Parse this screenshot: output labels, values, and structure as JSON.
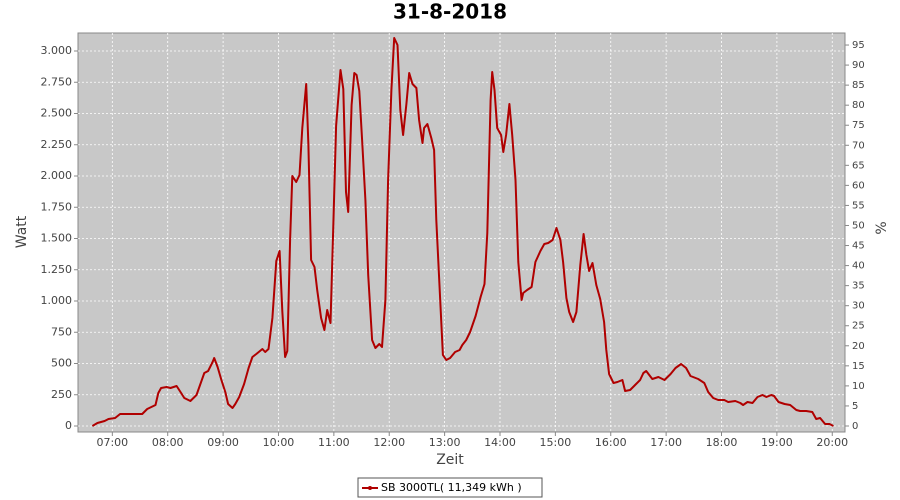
{
  "chart_data": {
    "type": "line",
    "title": "31-8-2018",
    "x_label": "Zeit",
    "y_label": "Watt",
    "y2_label": "%",
    "xlim": [
      6.38,
      20.23
    ],
    "xticks": [
      {
        "value": 7,
        "label": "07:00"
      },
      {
        "value": 8,
        "label": "08:00"
      },
      {
        "value": 9,
        "label": "09:00"
      },
      {
        "value": 10,
        "label": "10:00"
      },
      {
        "value": 11,
        "label": "11:00"
      },
      {
        "value": 12,
        "label": "12:00"
      },
      {
        "value": 13,
        "label": "13:00"
      },
      {
        "value": 14,
        "label": "14:00"
      },
      {
        "value": 15,
        "label": "15:00"
      },
      {
        "value": 16,
        "label": "16:00"
      },
      {
        "value": 17,
        "label": "17:00"
      },
      {
        "value": 18,
        "label": "18:00"
      },
      {
        "value": 19,
        "label": "19:00"
      },
      {
        "value": 20,
        "label": "20:00"
      }
    ],
    "ylim": [
      -48,
      3144
    ],
    "yticks": [
      0,
      250,
      500,
      750,
      {
        "value": 1000,
        "label": "1.000"
      },
      {
        "value": 1250,
        "label": "1.250"
      },
      {
        "value": 1500,
        "label": "1.500"
      },
      {
        "value": 1750,
        "label": "1.750"
      },
      {
        "value": 2000,
        "label": "2.000"
      },
      {
        "value": 2250,
        "label": "2.250"
      },
      {
        "value": 2500,
        "label": "2.500"
      },
      {
        "value": 2750,
        "label": "2.750"
      },
      {
        "value": 3000,
        "label": "3.000"
      }
    ],
    "y2lim": [
      -1.5,
      98
    ],
    "y2ticks": [
      0,
      5,
      10,
      15,
      20,
      25,
      30,
      35,
      40,
      45,
      50,
      55,
      60,
      65,
      70,
      75,
      80,
      85,
      90,
      95
    ],
    "grid": true,
    "legend": "bottom",
    "x": [
      6.64,
      6.73,
      6.86,
      6.93,
      7.05,
      7.14,
      7.54,
      7.63,
      7.78,
      7.83,
      7.88,
      7.98,
      8.05,
      8.16,
      8.23,
      8.3,
      8.41,
      8.52,
      8.59,
      8.66,
      8.73,
      8.81,
      8.84,
      8.9,
      8.97,
      9.04,
      9.09,
      9.17,
      9.22,
      9.29,
      9.38,
      9.46,
      9.53,
      9.6,
      9.71,
      9.76,
      9.82,
      9.89,
      9.96,
      10.02,
      10.07,
      10.12,
      10.16,
      10.21,
      10.25,
      10.32,
      10.38,
      10.43,
      10.5,
      10.54,
      10.59,
      10.65,
      10.7,
      10.77,
      10.83,
      10.88,
      10.94,
      10.99,
      11.04,
      11.12,
      11.17,
      11.22,
      11.26,
      11.32,
      11.37,
      11.41,
      11.46,
      11.51,
      11.57,
      11.62,
      11.69,
      11.75,
      11.82,
      11.87,
      11.93,
      11.98,
      12.04,
      12.09,
      12.15,
      12.2,
      12.25,
      12.31,
      12.36,
      12.42,
      12.49,
      12.54,
      12.6,
      12.63,
      12.69,
      12.76,
      12.81,
      12.85,
      12.92,
      12.97,
      13.03,
      13.1,
      13.19,
      13.27,
      13.32,
      13.39,
      13.46,
      13.56,
      13.65,
      13.72,
      13.77,
      13.83,
      13.86,
      13.9,
      13.95,
      14.02,
      14.06,
      14.11,
      14.17,
      14.22,
      14.28,
      14.33,
      14.39,
      14.42,
      14.49,
      14.57,
      14.64,
      14.73,
      14.8,
      14.87,
      14.95,
      15.02,
      15.09,
      15.14,
      15.2,
      15.25,
      15.32,
      15.38,
      15.45,
      15.51,
      15.56,
      15.61,
      15.67,
      15.74,
      15.81,
      15.88,
      15.92,
      15.97,
      16.05,
      16.12,
      16.21,
      16.26,
      16.35,
      16.44,
      16.53,
      16.59,
      16.64,
      16.75,
      16.86,
      16.97,
      17.08,
      17.17,
      17.27,
      17.36,
      17.44,
      17.58,
      17.69,
      17.76,
      17.85,
      17.94,
      18.05,
      18.12,
      18.25,
      18.34,
      18.39,
      18.47,
      18.56,
      18.65,
      18.74,
      18.81,
      18.9,
      18.95,
      19.03,
      19.14,
      19.24,
      19.35,
      19.42,
      19.53,
      19.64,
      19.71,
      19.78,
      19.87,
      19.95,
      20.02
    ],
    "series": [
      {
        "name": "SB 3000TL( 11,349 kWh )",
        "color": "#b00000",
        "values": [
          0,
          24,
          40,
          56,
          64,
          96,
          96,
          136,
          168,
          264,
          304,
          312,
          304,
          320,
          272,
          224,
          200,
          248,
          336,
          424,
          440,
          512,
          544,
          472,
          368,
          272,
          176,
          144,
          176,
          232,
          336,
          464,
          552,
          576,
          616,
          592,
          616,
          864,
          1320,
          1400,
          920,
          552,
          600,
          1488,
          2000,
          1952,
          2008,
          2384,
          2736,
          2248,
          1328,
          1272,
          1088,
          864,
          768,
          928,
          824,
          1600,
          2400,
          2848,
          2696,
          1872,
          1712,
          2568,
          2824,
          2808,
          2680,
          2288,
          1808,
          1208,
          688,
          624,
          656,
          632,
          1008,
          1968,
          2688,
          3104,
          3048,
          2528,
          2328,
          2576,
          2824,
          2736,
          2704,
          2448,
          2264,
          2384,
          2416,
          2304,
          2208,
          1648,
          1008,
          568,
          528,
          544,
          592,
          608,
          648,
          688,
          752,
          880,
          1032,
          1136,
          1544,
          2608,
          2832,
          2688,
          2384,
          2328,
          2192,
          2328,
          2576,
          2328,
          1968,
          1312,
          1008,
          1064,
          1088,
          1112,
          1312,
          1400,
          1456,
          1464,
          1488,
          1584,
          1488,
          1312,
          1024,
          912,
          832,
          912,
          1288,
          1536,
          1368,
          1240,
          1304,
          1128,
          1016,
          832,
          608,
          416,
          344,
          352,
          368,
          280,
          288,
          328,
          368,
          424,
          440,
          376,
          392,
          368,
          416,
          464,
          496,
          464,
          400,
          376,
          344,
          272,
          224,
          208,
          208,
          192,
          200,
          184,
          168,
          192,
          184,
          232,
          248,
          232,
          248,
          240,
          192,
          176,
          168,
          128,
          120,
          120,
          112,
          56,
          64,
          16,
          16,
          0
        ]
      }
    ]
  }
}
